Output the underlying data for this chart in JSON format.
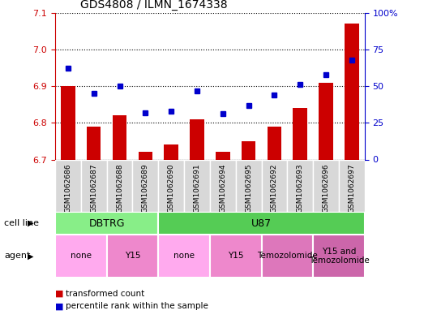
{
  "title": "GDS4808 / ILMN_1674338",
  "samples": [
    "GSM1062686",
    "GSM1062687",
    "GSM1062688",
    "GSM1062689",
    "GSM1062690",
    "GSM1062691",
    "GSM1062694",
    "GSM1062695",
    "GSM1062692",
    "GSM1062693",
    "GSM1062696",
    "GSM1062697"
  ],
  "red_values": [
    6.9,
    6.79,
    6.82,
    6.72,
    6.74,
    6.81,
    6.72,
    6.75,
    6.79,
    6.84,
    6.91,
    7.07
  ],
  "blue_values": [
    62,
    45,
    50,
    32,
    33,
    47,
    31,
    37,
    44,
    51,
    58,
    68
  ],
  "ylim_left": [
    6.7,
    7.1
  ],
  "ylim_right": [
    0,
    100
  ],
  "yticks_left": [
    6.7,
    6.8,
    6.9,
    7.0,
    7.1
  ],
  "yticks_right": [
    0,
    25,
    50,
    75,
    100
  ],
  "bar_color": "#cc0000",
  "dot_color": "#0000cc",
  "cell_line_groups": [
    {
      "label": "DBTRG",
      "start": 0,
      "end": 3,
      "color": "#88ee88"
    },
    {
      "label": "U87",
      "start": 4,
      "end": 11,
      "color": "#55cc55"
    }
  ],
  "agent_groups": [
    {
      "label": "none",
      "start": 0,
      "end": 1,
      "color": "#ffaaee"
    },
    {
      "label": "Y15",
      "start": 2,
      "end": 3,
      "color": "#ee88cc"
    },
    {
      "label": "none",
      "start": 4,
      "end": 5,
      "color": "#ffaaee"
    },
    {
      "label": "Y15",
      "start": 6,
      "end": 7,
      "color": "#ee88cc"
    },
    {
      "label": "Temozolomide",
      "start": 8,
      "end": 9,
      "color": "#dd77bb"
    },
    {
      "label": "Y15 and\nTemozolomide",
      "start": 10,
      "end": 11,
      "color": "#cc66aa"
    }
  ],
  "legend_items": [
    {
      "label": "transformed count",
      "color": "#cc0000"
    },
    {
      "label": "percentile rank within the sample",
      "color": "#0000cc"
    }
  ],
  "grid_color": "#000000",
  "tick_label_color_left": "#cc0000",
  "tick_label_color_right": "#0000cc",
  "base_value": 6.7,
  "sample_box_color": "#d8d8d8"
}
